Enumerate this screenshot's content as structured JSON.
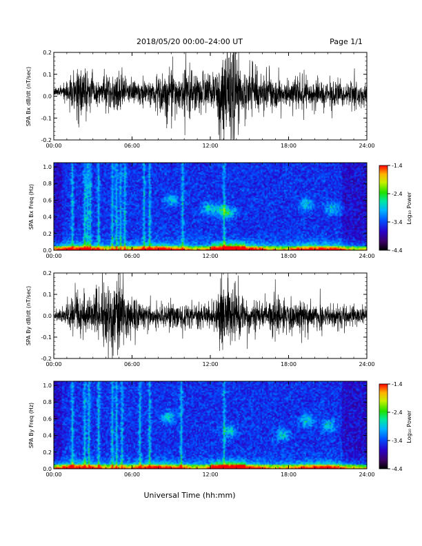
{
  "header": {
    "title": "2018/05/20  00:00–24:00 UT",
    "page": "Page 1/1"
  },
  "footer": {
    "xlabel": "Universal Time (hh:mm)"
  },
  "chart_data": [
    {
      "type": "line",
      "panel": "bx-timeseries",
      "ylabel": "SPA Bx dB/dt (nT/sec)",
      "x_ticks": [
        "00:00",
        "06:00",
        "12:00",
        "18:00",
        "24:00"
      ],
      "y_ticks": [
        "0.2",
        "0.1",
        "0.0",
        "-0.1",
        "-0.2"
      ],
      "xlim_hours": [
        0,
        24
      ],
      "ylim": [
        -0.2,
        0.2
      ],
      "series_color": "#000000",
      "envelope_hours": [
        0,
        0.5,
        1,
        1.5,
        2,
        2.5,
        3,
        3.5,
        4,
        4.5,
        5,
        5.5,
        6,
        6.5,
        7,
        7.5,
        8,
        8.5,
        9,
        9.5,
        10,
        10.5,
        11,
        11.5,
        12,
        12.5,
        13,
        13.5,
        14,
        14.5,
        15,
        15.5,
        16,
        16.5,
        17,
        17.5,
        18,
        18.5,
        19,
        19.5,
        20,
        20.5,
        21,
        21.5,
        22,
        22.5,
        23,
        23.5,
        24
      ],
      "envelope_amplitude": [
        0.02,
        0.025,
        0.05,
        0.09,
        0.14,
        0.1,
        0.09,
        0.05,
        0.07,
        0.09,
        0.1,
        0.07,
        0.05,
        0.06,
        0.07,
        0.06,
        0.08,
        0.1,
        0.1,
        0.07,
        0.11,
        0.1,
        0.09,
        0.1,
        0.08,
        0.1,
        0.2,
        0.21,
        0.19,
        0.12,
        0.08,
        0.09,
        0.08,
        0.08,
        0.07,
        0.06,
        0.07,
        0.08,
        0.08,
        0.07,
        0.07,
        0.07,
        0.06,
        0.07,
        0.06,
        0.05,
        0.06,
        0.05,
        0.05
      ],
      "offset": 0.02
    },
    {
      "type": "heatmap",
      "panel": "bx-spectrogram",
      "ylabel": "SPA Bx Freq (Hz)",
      "x_ticks": [
        "00:00",
        "06:00",
        "12:00",
        "18:00",
        "24:00"
      ],
      "y_ticks": [
        "1.0",
        "0.8",
        "0.6",
        "0.4",
        "0.2",
        "0.0"
      ],
      "xlim_hours": [
        0,
        24
      ],
      "ylim_hz": [
        0,
        1.05
      ],
      "colorbar": {
        "label": "Log₁₀ Power",
        "ticks": [
          "-1.4",
          "-2.4",
          "-3.4",
          "-4.4"
        ],
        "range": [
          -4.4,
          -1.4
        ]
      },
      "vertical_streak_hours": [
        1.4,
        2.3,
        2.5,
        2.7,
        3.4,
        4.4,
        4.8,
        5.1,
        5.4,
        6.9,
        7.3,
        9.8,
        13.0
      ],
      "blobs": [
        {
          "hour": 9.0,
          "freq_hz": 0.6
        },
        {
          "hour": 11.8,
          "freq_hz": 0.5
        },
        {
          "hour": 12.8,
          "freq_hz": 0.48
        },
        {
          "hour": 13.4,
          "freq_hz": 0.45
        },
        {
          "hour": 19.3,
          "freq_hz": 0.55
        },
        {
          "hour": 21.3,
          "freq_hz": 0.5
        }
      ]
    },
    {
      "type": "line",
      "panel": "by-timeseries",
      "ylabel": "SPA By dB/dt (nT/sec)",
      "x_ticks": [
        "00:00",
        "06:00",
        "12:00",
        "18:00",
        "24:00"
      ],
      "y_ticks": [
        "0.2",
        "0.1",
        "0.0",
        "-0.1",
        "-0.2"
      ],
      "xlim_hours": [
        0,
        24
      ],
      "ylim": [
        -0.2,
        0.2
      ],
      "series_color": "#000000",
      "envelope_hours": [
        0,
        0.5,
        1,
        1.5,
        2,
        2.5,
        3,
        3.5,
        4,
        4.5,
        5,
        5.5,
        6,
        6.5,
        7,
        7.5,
        8,
        8.5,
        9,
        9.5,
        10,
        10.5,
        11,
        11.5,
        12,
        12.5,
        13,
        13.5,
        14,
        14.5,
        15,
        15.5,
        16,
        16.5,
        17,
        17.5,
        18,
        18.5,
        19,
        19.5,
        20,
        20.5,
        21,
        21.5,
        22,
        22.5,
        23,
        23.5,
        24
      ],
      "envelope_amplitude": [
        0.02,
        0.03,
        0.05,
        0.1,
        0.12,
        0.09,
        0.08,
        0.1,
        0.15,
        0.14,
        0.18,
        0.12,
        0.1,
        0.07,
        0.06,
        0.05,
        0.05,
        0.05,
        0.07,
        0.06,
        0.07,
        0.06,
        0.05,
        0.06,
        0.05,
        0.1,
        0.19,
        0.16,
        0.12,
        0.1,
        0.07,
        0.07,
        0.06,
        0.07,
        0.1,
        0.07,
        0.07,
        0.06,
        0.07,
        0.06,
        0.05,
        0.06,
        0.05,
        0.05,
        0.05,
        0.05,
        0.05,
        0.04,
        0.04
      ],
      "offset": 0.0
    },
    {
      "type": "heatmap",
      "panel": "by-spectrogram",
      "ylabel": "SPA By Freq (Hz)",
      "x_ticks": [
        "00:00",
        "06:00",
        "12:00",
        "18:00",
        "24:00"
      ],
      "y_ticks": [
        "1.0",
        "0.8",
        "0.6",
        "0.4",
        "0.2",
        "0.0"
      ],
      "xlim_hours": [
        0,
        24
      ],
      "ylim_hz": [
        0,
        1.05
      ],
      "colorbar": {
        "label": "Log₁₀ Power",
        "ticks": [
          "-1.4",
          "-2.4",
          "-3.4",
          "-4.4"
        ],
        "range": [
          -4.4,
          -1.4
        ]
      },
      "vertical_streak_hours": [
        1.4,
        2.3,
        2.6,
        3.4,
        4.4,
        4.8,
        5.2,
        6.6,
        7.3,
        9.7,
        13.0
      ],
      "blobs": [
        {
          "hour": 8.7,
          "freq_hz": 0.62
        },
        {
          "hour": 13.4,
          "freq_hz": 0.45
        },
        {
          "hour": 17.5,
          "freq_hz": 0.4
        },
        {
          "hour": 19.4,
          "freq_hz": 0.58
        },
        {
          "hour": 21.0,
          "freq_hz": 0.52
        }
      ]
    }
  ]
}
